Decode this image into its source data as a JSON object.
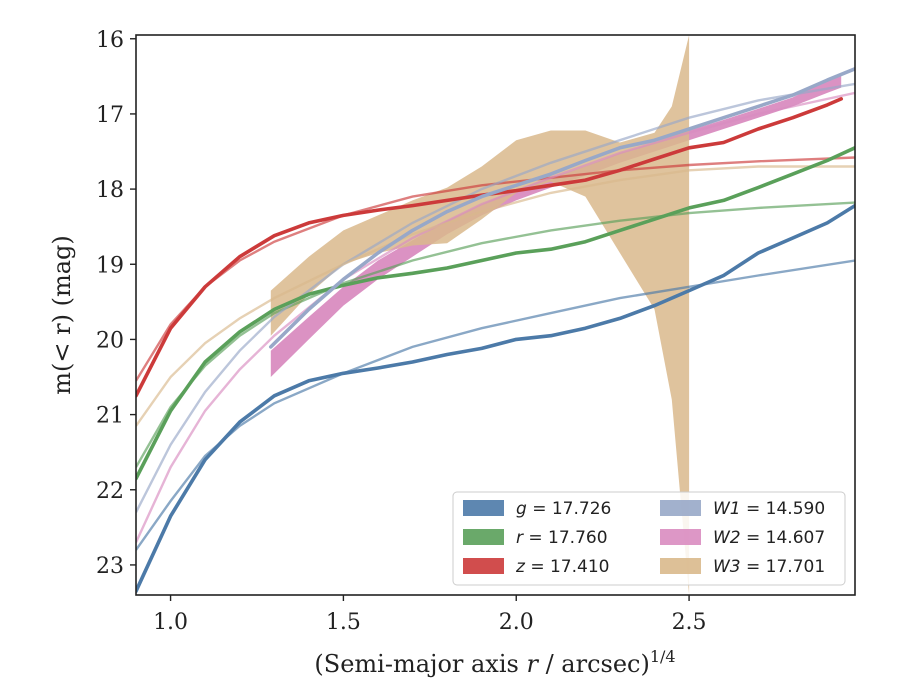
{
  "chart_data": {
    "type": "line",
    "title": "",
    "xlabel": "(Semi-major axis r / arcsec)",
    "xlabel_italic": "r",
    "xlabel_sup": "1/4",
    "ylabel": "m(< r) (mag)",
    "xlim": [
      0.9,
      2.98
    ],
    "ylim": [
      23.4,
      15.95
    ],
    "y_inverted": true,
    "x_ticks": [
      1.0,
      1.5,
      2.0,
      2.5
    ],
    "x_tick_labels": [
      "1.0",
      "1.5",
      "2.0",
      "2.5"
    ],
    "y_ticks": [
      16,
      17,
      18,
      19,
      20,
      21,
      22,
      23
    ],
    "y_tick_labels": [
      "16",
      "17",
      "18",
      "19",
      "20",
      "21",
      "22",
      "23"
    ],
    "grid": false,
    "legend_placement": "lower-right",
    "legend_columns": 2,
    "series": [
      {
        "name": "g = 17.726",
        "legend": "g = 17.726",
        "color": "#4c7aa8",
        "data": [
          [
            0.9,
            23.35
          ],
          [
            1.0,
            22.35
          ],
          [
            1.1,
            21.6
          ],
          [
            1.2,
            21.1
          ],
          [
            1.3,
            20.75
          ],
          [
            1.4,
            20.55
          ],
          [
            1.5,
            20.45
          ],
          [
            1.6,
            20.38
          ],
          [
            1.7,
            20.3
          ],
          [
            1.8,
            20.2
          ],
          [
            1.9,
            20.12
          ],
          [
            2.0,
            20.0
          ],
          [
            2.1,
            19.95
          ],
          [
            2.2,
            19.85
          ],
          [
            2.3,
            19.72
          ],
          [
            2.4,
            19.55
          ],
          [
            2.5,
            19.35
          ],
          [
            2.6,
            19.15
          ],
          [
            2.7,
            18.85
          ],
          [
            2.8,
            18.65
          ],
          [
            2.9,
            18.45
          ],
          [
            2.98,
            18.22
          ]
        ],
        "model": [
          [
            0.9,
            22.8
          ],
          [
            1.0,
            22.15
          ],
          [
            1.1,
            21.55
          ],
          [
            1.2,
            21.15
          ],
          [
            1.3,
            20.85
          ],
          [
            1.5,
            20.45
          ],
          [
            1.7,
            20.1
          ],
          [
            1.9,
            19.85
          ],
          [
            2.1,
            19.65
          ],
          [
            2.3,
            19.45
          ],
          [
            2.5,
            19.3
          ],
          [
            2.7,
            19.15
          ],
          [
            2.98,
            18.95
          ]
        ]
      },
      {
        "name": "r = 17.760",
        "legend": "r = 17.760",
        "color": "#5aa05a",
        "data": [
          [
            0.9,
            21.85
          ],
          [
            1.0,
            20.95
          ],
          [
            1.1,
            20.3
          ],
          [
            1.2,
            19.9
          ],
          [
            1.3,
            19.6
          ],
          [
            1.4,
            19.4
          ],
          [
            1.5,
            19.28
          ],
          [
            1.6,
            19.18
          ],
          [
            1.7,
            19.12
          ],
          [
            1.8,
            19.05
          ],
          [
            1.9,
            18.95
          ],
          [
            2.0,
            18.85
          ],
          [
            2.1,
            18.8
          ],
          [
            2.2,
            18.7
          ],
          [
            2.3,
            18.55
          ],
          [
            2.4,
            18.4
          ],
          [
            2.5,
            18.25
          ],
          [
            2.6,
            18.15
          ],
          [
            2.7,
            17.98
          ],
          [
            2.8,
            17.8
          ],
          [
            2.9,
            17.62
          ],
          [
            2.98,
            17.45
          ]
        ],
        "model": [
          [
            0.9,
            21.7
          ],
          [
            1.0,
            20.9
          ],
          [
            1.1,
            20.35
          ],
          [
            1.2,
            19.95
          ],
          [
            1.3,
            19.65
          ],
          [
            1.5,
            19.25
          ],
          [
            1.7,
            18.95
          ],
          [
            1.9,
            18.72
          ],
          [
            2.1,
            18.55
          ],
          [
            2.3,
            18.42
          ],
          [
            2.5,
            18.32
          ],
          [
            2.7,
            18.25
          ],
          [
            2.98,
            18.18
          ]
        ]
      },
      {
        "name": "z = 17.410",
        "legend": "z = 17.410",
        "color": "#cc3a3a",
        "data": [
          [
            0.9,
            20.75
          ],
          [
            1.0,
            19.85
          ],
          [
            1.1,
            19.3
          ],
          [
            1.2,
            18.9
          ],
          [
            1.3,
            18.62
          ],
          [
            1.4,
            18.45
          ],
          [
            1.5,
            18.35
          ],
          [
            1.6,
            18.28
          ],
          [
            1.7,
            18.22
          ],
          [
            1.8,
            18.15
          ],
          [
            1.9,
            18.08
          ],
          [
            2.0,
            18.02
          ],
          [
            2.1,
            17.95
          ],
          [
            2.2,
            17.88
          ],
          [
            2.3,
            17.75
          ],
          [
            2.4,
            17.6
          ],
          [
            2.5,
            17.45
          ],
          [
            2.6,
            17.38
          ],
          [
            2.7,
            17.2
          ],
          [
            2.8,
            17.05
          ],
          [
            2.9,
            16.88
          ],
          [
            2.94,
            16.8
          ]
        ],
        "model": [
          [
            0.9,
            20.55
          ],
          [
            1.0,
            19.8
          ],
          [
            1.1,
            19.3
          ],
          [
            1.2,
            18.95
          ],
          [
            1.3,
            18.7
          ],
          [
            1.5,
            18.35
          ],
          [
            1.7,
            18.1
          ],
          [
            1.9,
            17.95
          ],
          [
            2.1,
            17.85
          ],
          [
            2.3,
            17.75
          ],
          [
            2.5,
            17.68
          ],
          [
            2.7,
            17.63
          ],
          [
            2.98,
            17.58
          ]
        ]
      },
      {
        "name": "W1 = 14.590",
        "legend": "W1 = 14.590",
        "color": "#98a8c8",
        "data": [
          [
            1.29,
            20.1
          ],
          [
            1.4,
            19.6
          ],
          [
            1.5,
            19.2
          ],
          [
            1.6,
            18.85
          ],
          [
            1.7,
            18.55
          ],
          [
            1.8,
            18.3
          ],
          [
            1.9,
            18.1
          ],
          [
            2.0,
            17.95
          ],
          [
            2.1,
            17.8
          ],
          [
            2.2,
            17.62
          ],
          [
            2.3,
            17.45
          ],
          [
            2.4,
            17.35
          ],
          [
            2.5,
            17.2
          ],
          [
            2.6,
            17.05
          ],
          [
            2.7,
            16.9
          ],
          [
            2.8,
            16.75
          ],
          [
            2.9,
            16.55
          ],
          [
            2.98,
            16.4
          ]
        ],
        "model": [
          [
            0.9,
            22.3
          ],
          [
            1.0,
            21.4
          ],
          [
            1.1,
            20.7
          ],
          [
            1.2,
            20.15
          ],
          [
            1.3,
            19.7
          ],
          [
            1.5,
            19.0
          ],
          [
            1.7,
            18.45
          ],
          [
            1.9,
            18.0
          ],
          [
            2.1,
            17.65
          ],
          [
            2.3,
            17.35
          ],
          [
            2.5,
            17.05
          ],
          [
            2.7,
            16.82
          ],
          [
            2.98,
            16.6
          ]
        ]
      },
      {
        "name": "W2 = 14.607",
        "legend": "W2 = 14.607",
        "color": "#d98cc0",
        "band": [
          [
            1.29,
            20.5,
            20.15
          ],
          [
            1.4,
            20.0,
            19.7
          ],
          [
            1.5,
            19.55,
            19.3
          ],
          [
            1.6,
            19.2,
            18.95
          ],
          [
            1.7,
            18.9,
            18.68
          ],
          [
            1.8,
            18.6,
            18.42
          ],
          [
            1.9,
            18.35,
            18.2
          ],
          [
            2.0,
            18.15,
            18.0
          ],
          [
            2.1,
            17.98,
            17.85
          ],
          [
            2.2,
            17.82,
            17.7
          ],
          [
            2.3,
            17.65,
            17.52
          ],
          [
            2.4,
            17.5,
            17.38
          ],
          [
            2.5,
            17.35,
            17.22
          ],
          [
            2.6,
            17.2,
            17.08
          ],
          [
            2.7,
            17.05,
            16.93
          ],
          [
            2.8,
            16.9,
            16.78
          ],
          [
            2.9,
            16.72,
            16.55
          ],
          [
            2.94,
            16.65,
            16.5
          ]
        ],
        "model": [
          [
            0.9,
            22.7
          ],
          [
            1.0,
            21.7
          ],
          [
            1.1,
            20.95
          ],
          [
            1.2,
            20.4
          ],
          [
            1.3,
            19.95
          ],
          [
            1.5,
            19.2
          ],
          [
            1.7,
            18.65
          ],
          [
            1.9,
            18.2
          ],
          [
            2.1,
            17.85
          ],
          [
            2.3,
            17.52
          ],
          [
            2.5,
            17.25
          ],
          [
            2.7,
            17.0
          ],
          [
            2.98,
            16.72
          ]
        ]
      },
      {
        "name": "W3 = 17.701",
        "legend": "W3 = 17.701",
        "color": "#d9b98c",
        "band": [
          [
            1.29,
            19.95,
            19.35
          ],
          [
            1.4,
            19.4,
            18.9
          ],
          [
            1.5,
            19.0,
            18.55
          ],
          [
            1.6,
            18.85,
            18.35
          ],
          [
            1.7,
            18.75,
            18.15
          ],
          [
            1.8,
            18.72,
            17.98
          ],
          [
            1.9,
            18.4,
            17.7
          ],
          [
            2.0,
            18.05,
            17.35
          ],
          [
            2.1,
            17.9,
            17.22
          ],
          [
            2.2,
            18.1,
            17.22
          ],
          [
            2.3,
            18.85,
            17.38
          ],
          [
            2.4,
            19.6,
            17.25
          ],
          [
            2.45,
            20.8,
            16.9
          ],
          [
            2.5,
            23.4,
            15.95
          ]
        ],
        "model": [
          [
            0.9,
            21.15
          ],
          [
            1.0,
            20.5
          ],
          [
            1.1,
            20.05
          ],
          [
            1.2,
            19.72
          ],
          [
            1.3,
            19.45
          ],
          [
            1.5,
            19.0
          ],
          [
            1.7,
            18.6
          ],
          [
            1.9,
            18.3
          ],
          [
            2.1,
            18.05
          ],
          [
            2.3,
            17.88
          ],
          [
            2.5,
            17.75
          ],
          [
            2.7,
            17.7
          ],
          [
            2.98,
            17.7
          ]
        ]
      }
    ]
  }
}
